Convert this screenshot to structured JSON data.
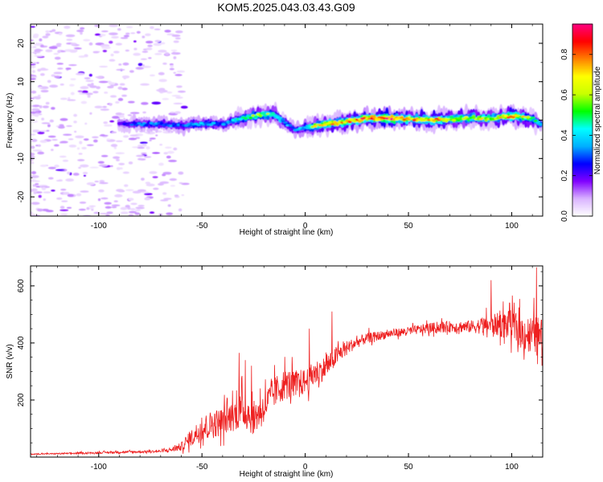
{
  "figure": {
    "title": "KOM5.2025.043.03.43.G09"
  },
  "chart_data": [
    {
      "type": "heatmap",
      "xlabel": "Height of straight line (km)",
      "ylabel": "Frequency (Hz)",
      "xlim": [
        -133,
        115
      ],
      "ylim": [
        -25,
        25
      ],
      "x_ticks": [
        -100,
        -50,
        0,
        50,
        100
      ],
      "y_ticks": [
        -20,
        -10,
        0,
        10,
        20
      ],
      "colorbar": {
        "label": "Normalized spectral amplitude",
        "range": [
          0.0,
          0.95
        ],
        "ticks": [
          0.0,
          0.2,
          0.4,
          0.6,
          0.8
        ],
        "tick_labels": [
          "0.0",
          "0.2",
          "0.4",
          "0.6",
          "0.8"
        ],
        "colormap": [
          "#ffffff",
          "#d9b3ff",
          "#8000ff",
          "#0000ff",
          "#00b0ff",
          "#00ffff",
          "#00ff00",
          "#c8ff00",
          "#ffff00",
          "#ff8000",
          "#ff0000",
          "#ff0080"
        ]
      },
      "ridge": {
        "x": [
          -90,
          -80,
          -70,
          -60,
          -50,
          -40,
          -30,
          -25,
          -20,
          -15,
          -10,
          -5,
          0,
          5,
          10,
          20,
          30,
          40,
          50,
          60,
          70,
          80,
          90,
          100,
          110,
          115
        ],
        "freq": [
          -1,
          -1,
          -1,
          -1.5,
          -1,
          -1,
          0.5,
          1,
          1.5,
          1.5,
          -0.5,
          -2.5,
          -2,
          -1.5,
          -1,
          -0.5,
          0.5,
          0.5,
          0.3,
          0,
          0.2,
          0.5,
          0.5,
          1,
          0.5,
          -1.5
        ],
        "amplitude": [
          0.2,
          0.3,
          0.3,
          0.3,
          0.35,
          0.3,
          0.45,
          0.5,
          0.55,
          0.5,
          0.35,
          0.3,
          0.4,
          0.6,
          0.65,
          0.7,
          0.8,
          0.85,
          0.7,
          0.75,
          0.65,
          0.6,
          0.6,
          0.75,
          0.5,
          0.3
        ]
      }
    },
    {
      "type": "line",
      "xlabel": "Height of straight line (km)",
      "ylabel": "SNR (v/v)",
      "xlim": [
        -133,
        115
      ],
      "ylim": [
        0,
        670
      ],
      "x_ticks": [
        -100,
        -50,
        0,
        50,
        100
      ],
      "y_ticks": [
        200,
        400,
        600
      ],
      "series": [
        {
          "color": "#ee2020",
          "x": [
            -133,
            -120,
            -110,
            -100,
            -90,
            -80,
            -70,
            -65,
            -60,
            -55,
            -50,
            -45,
            -40,
            -35,
            -30,
            -25,
            -20,
            -15,
            -10,
            -5,
            0,
            5,
            10,
            15,
            20,
            25,
            30,
            40,
            50,
            60,
            70,
            80,
            90,
            95,
            100,
            105,
            110,
            115
          ],
          "y": [
            10,
            12,
            13,
            15,
            17,
            18,
            20,
            25,
            35,
            65,
            95,
            110,
            120,
            140,
            160,
            130,
            170,
            220,
            250,
            250,
            260,
            290,
            310,
            350,
            380,
            400,
            415,
            430,
            440,
            450,
            455,
            455,
            460,
            460,
            455,
            430,
            420,
            410
          ],
          "noise": [
            2,
            2,
            3,
            3,
            4,
            4,
            4,
            8,
            15,
            30,
            45,
            50,
            50,
            55,
            65,
            60,
            55,
            55,
            55,
            50,
            45,
            45,
            40,
            35,
            25,
            20,
            18,
            15,
            15,
            18,
            20,
            22,
            35,
            45,
            55,
            60,
            70,
            70
          ],
          "peaks": [
            {
              "x": -32,
              "y": 365
            },
            {
              "x": -29,
              "y": 340
            },
            {
              "x": -26,
              "y": 320
            },
            {
              "x": 2,
              "y": 450
            },
            {
              "x": 13,
              "y": 510
            },
            {
              "x": 90,
              "y": 620
            },
            {
              "x": 99,
              "y": 540
            },
            {
              "x": 112,
              "y": 665
            }
          ]
        }
      ]
    }
  ]
}
